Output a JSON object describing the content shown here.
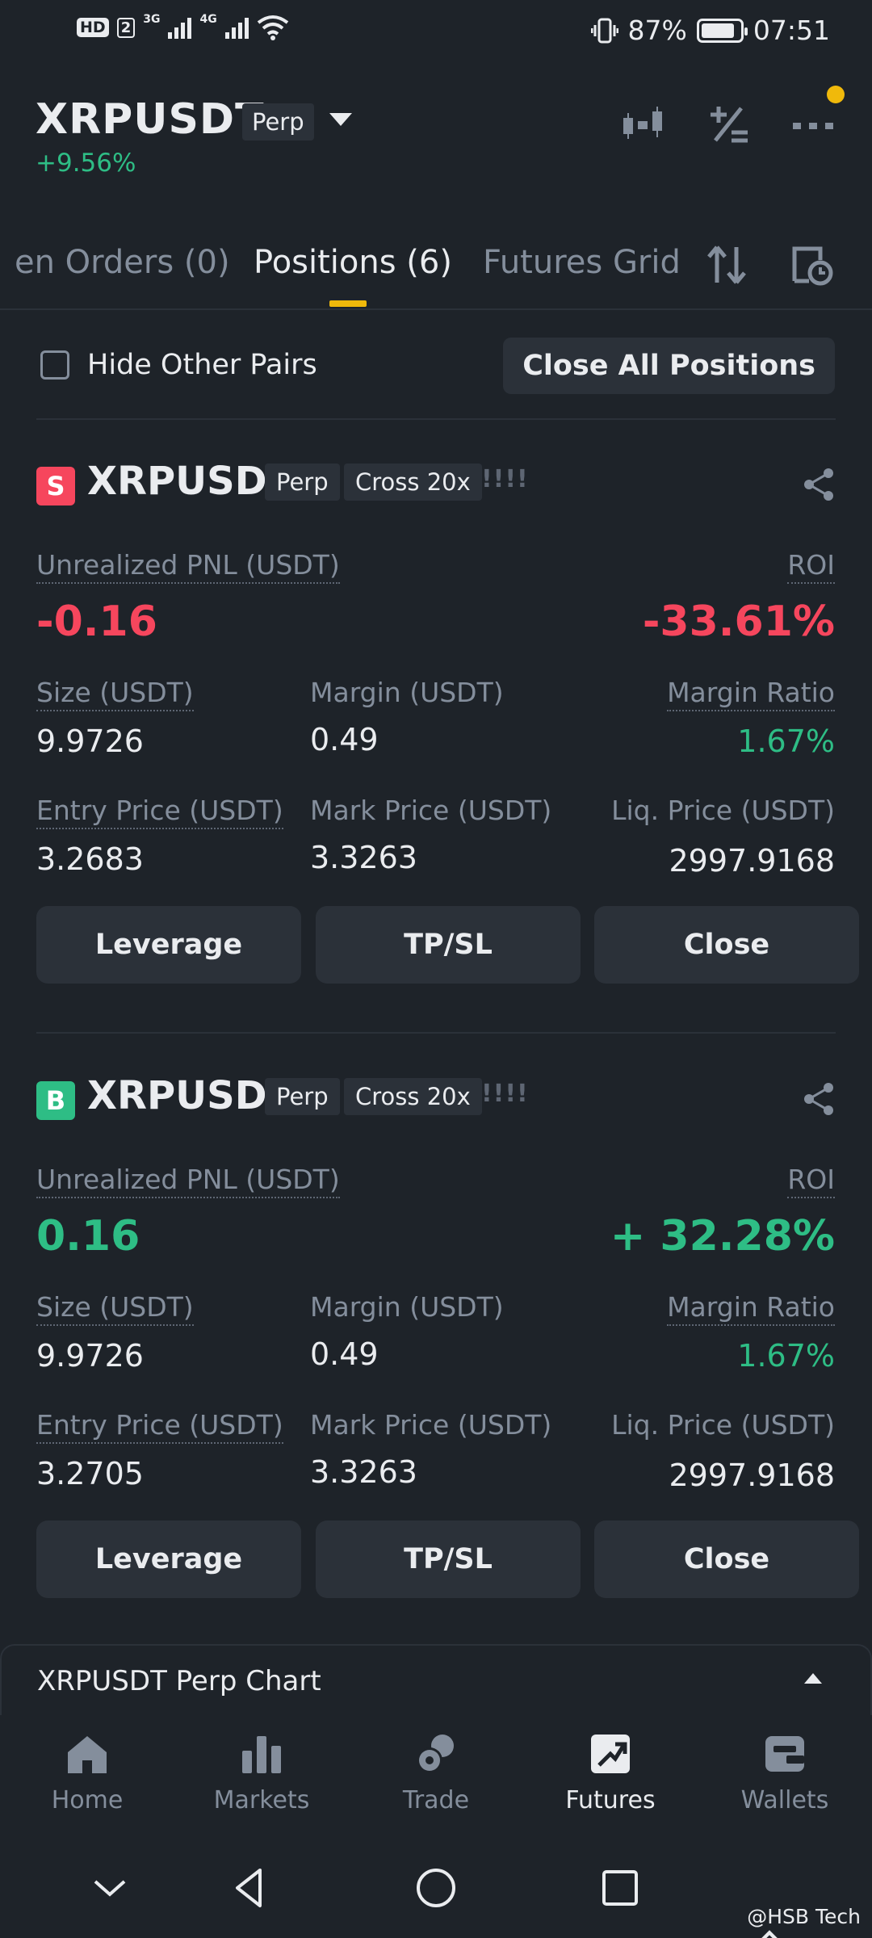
{
  "status_bar": {
    "hd": "HD",
    "sim": "2",
    "net1": "3G",
    "net2": "4G",
    "battery": "87%",
    "time": "07:51"
  },
  "header": {
    "symbol": "XRPUSDT",
    "contract_type": "Perp",
    "change": "+9.56%"
  },
  "tabs": [
    {
      "label": "en Orders (0)"
    },
    {
      "label": "Positions (6)"
    },
    {
      "label": "Futures Grid"
    }
  ],
  "filter": {
    "hide_other_pairs": "Hide Other Pairs",
    "close_all": "Close All Positions"
  },
  "positions": [
    {
      "side": "S",
      "symbol": "XRPUSDT",
      "contract": "Perp",
      "margin_mode": "Cross 20x",
      "strength": "!!!!",
      "pnl_label": "Unrealized PNL (USDT)",
      "pnl": "-0.16",
      "roi_label": "ROI",
      "roi": "-33.61%",
      "size_label": "Size (USDT)",
      "size": "9.9726",
      "margin_label": "Margin (USDT)",
      "margin": "0.49",
      "margin_ratio_label": "Margin Ratio",
      "margin_ratio": "1.67%",
      "entry_label": "Entry Price (USDT)",
      "entry": "3.2683",
      "mark_label": "Mark Price (USDT)",
      "mark": "3.3263",
      "liq_label": "Liq. Price (USDT)",
      "liq": "2997.9168",
      "btn_leverage": "Leverage",
      "btn_tpsl": "TP/SL",
      "btn_close": "Close"
    },
    {
      "side": "B",
      "symbol": "XRPUSDT",
      "contract": "Perp",
      "margin_mode": "Cross 20x",
      "strength": "!!!!",
      "pnl_label": "Unrealized PNL (USDT)",
      "pnl": "0.16",
      "roi_label": "ROI",
      "roi": "+ 32.28%",
      "size_label": "Size (USDT)",
      "size": "9.9726",
      "margin_label": "Margin (USDT)",
      "margin": "0.49",
      "margin_ratio_label": "Margin Ratio",
      "margin_ratio": "1.67%",
      "entry_label": "Entry Price (USDT)",
      "entry": "3.2705",
      "mark_label": "Mark Price (USDT)",
      "mark": "3.3263",
      "liq_label": "Liq. Price (USDT)",
      "liq": "2997.9168",
      "btn_leverage": "Leverage",
      "btn_tpsl": "TP/SL",
      "btn_close": "Close"
    }
  ],
  "chart_bar": {
    "title": "XRPUSDT Perp Chart"
  },
  "bottom_nav": [
    {
      "label": "Home",
      "icon": "home-icon"
    },
    {
      "label": "Markets",
      "icon": "markets-icon"
    },
    {
      "label": "Trade",
      "icon": "trade-icon"
    },
    {
      "label": "Futures",
      "icon": "futures-icon"
    },
    {
      "label": "Wallets",
      "icon": "wallet-icon"
    }
  ],
  "watermark": "@HSB Tech",
  "colors": {
    "background": "#1e2329",
    "accent": "#f0b90b",
    "positive": "#2ebd85",
    "negative": "#f6465d"
  }
}
